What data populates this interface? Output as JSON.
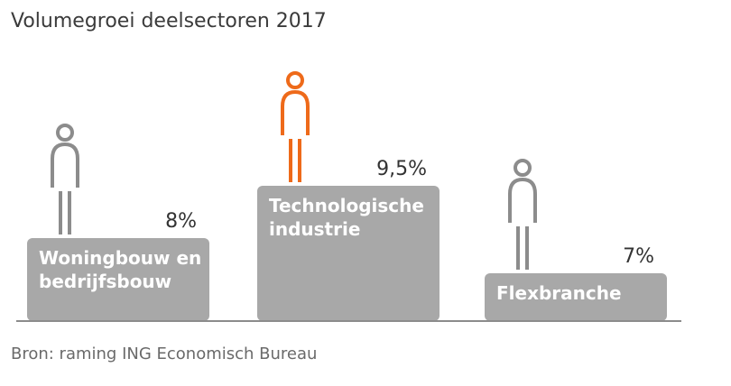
{
  "title": "Volumegroei deelsectoren 2017",
  "source": "Bron: raming ING Economisch Bureau",
  "colors": {
    "bar": "#a8a8a8",
    "icon_default": "#8c8c8c",
    "icon_highlight": "#ee6a1a",
    "baseline": "#8c8c8c"
  },
  "chart_data": {
    "type": "bar",
    "title": "Volumegroei deelsectoren 2017",
    "categories": [
      "Woningbouw en bedrijfsbouw",
      "Technologische industrie",
      "Flexbranche"
    ],
    "values": [
      8,
      9.5,
      7
    ],
    "value_labels": [
      "8%",
      "9,5%",
      "7%"
    ],
    "category_lines": [
      [
        "Woningbouw en",
        "bedrijfsbouw"
      ],
      [
        "Technologische",
        "industrie"
      ],
      [
        "Flexbranche"
      ]
    ],
    "highlight_index": 1,
    "icon": "person-icon",
    "grid": false,
    "legend": "none"
  }
}
